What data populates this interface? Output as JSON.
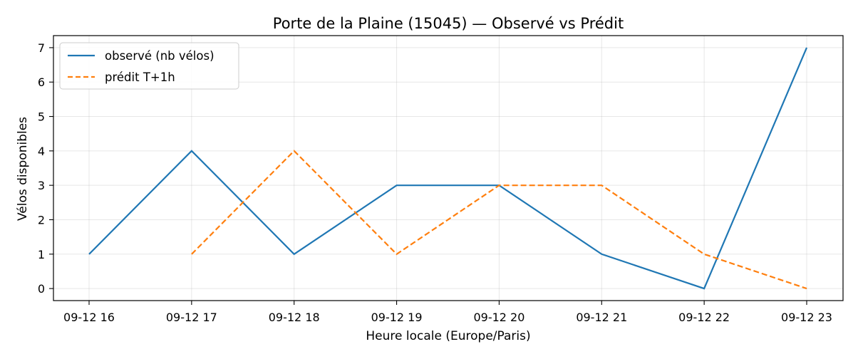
{
  "chart_data": {
    "type": "line",
    "title": "Porte de la Plaine (15045) — Observé vs Prédit",
    "xlabel": "Heure locale (Europe/Paris)",
    "ylabel": "Vélos disponibles",
    "categories": [
      "09-12 16",
      "09-12 17",
      "09-12 18",
      "09-12 19",
      "09-12 20",
      "09-12 21",
      "09-12 22",
      "09-12 23"
    ],
    "yticks": [
      "0",
      "1",
      "2",
      "3",
      "4",
      "5",
      "6",
      "7"
    ],
    "ylim": [
      -0.35,
      7.35
    ],
    "grid": true,
    "legend_position": "top-left",
    "series": [
      {
        "name": "observé (nb vélos)",
        "color": "#1f77b4",
        "style": "solid",
        "values": [
          1,
          4,
          1,
          3,
          3,
          1,
          0,
          7
        ]
      },
      {
        "name": "prédit T+1h",
        "color": "#ff7f0e",
        "style": "dashed",
        "values": [
          null,
          1,
          4,
          1,
          3,
          3,
          1,
          0
        ]
      }
    ]
  }
}
